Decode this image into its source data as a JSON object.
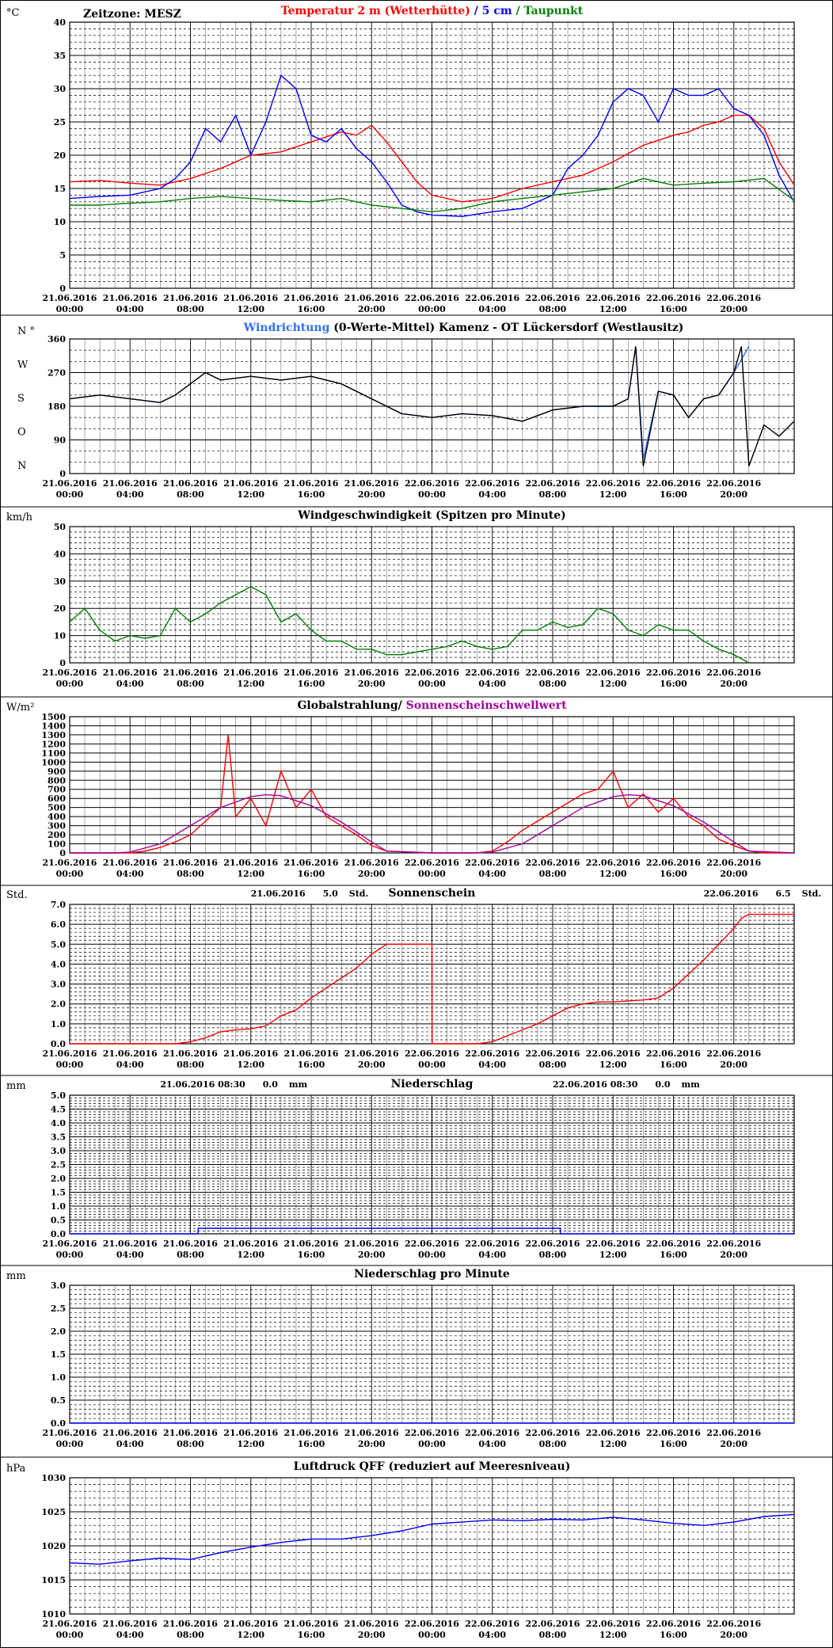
{
  "page": {
    "timezone": "Zeitzone: MESZ",
    "x_ticks": [
      "21.06.2016 00:00",
      "21.06.2016 04:00",
      "21.06.2016 08:00",
      "21.06.2016 12:00",
      "21.06.2016 16:00",
      "21.06.2016 20:00",
      "22.06.2016 00:00",
      "22.06.2016 04:00",
      "22.06.2016 08:00",
      "22.06.2016 12:00",
      "22.06.2016 16:00",
      "22.06.2016 20:00"
    ],
    "colors": {
      "red": "#ff0000",
      "blue": "#0000ff",
      "lightblue": "#3070ff",
      "green": "#008000",
      "purple": "#a000a0",
      "black": "#000000"
    }
  },
  "chart_data": [
    {
      "id": "temperature",
      "type": "line",
      "unit": "°C",
      "title_parts": [
        {
          "text": "Temperatur 2 m (Wetterhütte)",
          "color": "#ff0000"
        },
        {
          "text": "  /  ",
          "color": "#0000ff"
        },
        {
          "text": "5 cm",
          "color": "#0000ff"
        },
        {
          "text": " / ",
          "color": "#008000"
        },
        {
          "text": "Taupunkt",
          "color": "#008000"
        }
      ],
      "ylim": [
        0,
        40
      ],
      "yticks": [
        "0",
        "5",
        "10",
        "15",
        "20",
        "25",
        "30",
        "35",
        "40"
      ],
      "grid": true,
      "series": [
        {
          "name": "Temperatur 2 m (Wetterhütte)",
          "color": "#ff0000",
          "x": [
            0,
            2,
            4,
            6,
            8,
            10,
            12,
            14,
            16,
            18,
            19,
            20,
            21,
            22,
            23,
            24,
            26,
            28,
            30,
            32,
            34,
            36,
            38,
            40,
            41,
            42,
            43,
            44,
            45,
            46,
            47,
            48
          ],
          "y": [
            16,
            16.2,
            15.8,
            15.5,
            16.5,
            18,
            20,
            20.5,
            22,
            23.5,
            23,
            24.5,
            22,
            19,
            16,
            14,
            13,
            13.5,
            15,
            16,
            17,
            19,
            21.5,
            23,
            23.5,
            24.5,
            25,
            26,
            26,
            24,
            19,
            15.5
          ]
        },
        {
          "name": "5 cm",
          "color": "#0000ff",
          "x": [
            0,
            2,
            4,
            6,
            7,
            8,
            9,
            10,
            11,
            12,
            13,
            14,
            15,
            16,
            17,
            18,
            19,
            20,
            21,
            22,
            23,
            24,
            26,
            28,
            30,
            32,
            33,
            34,
            35,
            36,
            37,
            38,
            39,
            40,
            41,
            42,
            43,
            44,
            45,
            46,
            47,
            48
          ],
          "y": [
            13.5,
            13.8,
            14,
            15,
            16.5,
            19,
            24,
            22,
            26,
            20,
            25,
            32,
            30,
            23,
            22,
            24,
            21,
            19,
            16,
            12.5,
            11.5,
            11,
            10.8,
            11.5,
            12,
            14,
            18,
            20,
            23,
            28,
            30,
            29,
            25,
            30,
            29,
            29,
            30,
            27,
            26,
            23,
            17,
            13
          ]
        },
        {
          "name": "Taupunkt",
          "color": "#008000",
          "x": [
            0,
            2,
            4,
            6,
            8,
            10,
            12,
            14,
            16,
            18,
            20,
            22,
            24,
            26,
            28,
            30,
            32,
            34,
            36,
            38,
            40,
            42,
            44,
            46,
            48
          ],
          "y": [
            12.5,
            12.5,
            12.8,
            13,
            13.5,
            13.8,
            13.5,
            13.2,
            13,
            13.5,
            12.5,
            12,
            11.5,
            12,
            13,
            13.5,
            14,
            14.5,
            15,
            16.5,
            15.5,
            15.8,
            16,
            16.5,
            13.2
          ]
        }
      ]
    },
    {
      "id": "wind-direction",
      "type": "line",
      "title_parts": [
        {
          "text": "Windrichtung",
          "color": "#3070ff"
        },
        {
          "text": " (0-Werte-Mittel)",
          "color": "#000000"
        },
        {
          "text": "        Kamenz - OT Lückersdorf (Westlausitz)",
          "color": "#000000"
        }
      ],
      "ylim": [
        0,
        360
      ],
      "yticks": [
        "0",
        "90",
        "180",
        "270",
        "360"
      ],
      "ylabels_dir": [
        "N",
        "O",
        "S",
        "W",
        "N °"
      ],
      "grid": true,
      "series": [
        {
          "name": "Windrichtung",
          "color": "#3070ff",
          "x": [
            0,
            2,
            4,
            6,
            7,
            8,
            9,
            10,
            12,
            14,
            16,
            18,
            20,
            22,
            24,
            26,
            28,
            30,
            32,
            34,
            36,
            37,
            37.5,
            38,
            39,
            40,
            41,
            42,
            43,
            44,
            45
          ],
          "y": [
            200,
            210,
            200,
            190,
            210,
            240,
            270,
            250,
            260,
            250,
            260,
            240,
            200,
            160,
            150,
            160,
            155,
            140,
            170,
            180,
            180,
            200,
            340,
            40,
            220,
            210,
            150,
            200,
            210,
            270,
            340
          ]
        },
        {
          "name": "0-Werte-Mittel",
          "color": "#000000",
          "x": [
            0,
            2,
            4,
            6,
            7,
            8,
            9,
            10,
            12,
            14,
            16,
            18,
            20,
            22,
            24,
            26,
            28,
            30,
            32,
            34,
            36,
            37,
            37.5,
            38,
            39,
            40,
            41,
            42,
            43,
            44,
            44.5,
            45,
            46,
            47,
            48
          ],
          "y": [
            200,
            210,
            200,
            190,
            210,
            240,
            270,
            250,
            260,
            250,
            260,
            240,
            200,
            160,
            150,
            160,
            155,
            140,
            170,
            180,
            180,
            200,
            340,
            20,
            220,
            210,
            150,
            200,
            210,
            270,
            340,
            20,
            130,
            100,
            140
          ]
        }
      ]
    },
    {
      "id": "wind-speed",
      "type": "line",
      "unit": "km/h",
      "title_parts": [
        {
          "text": "Windgeschwindigkeit (Spitzen pro Minute)",
          "color": "#000000"
        }
      ],
      "ylim": [
        0,
        50
      ],
      "yticks": [
        "0",
        "10",
        "20",
        "30",
        "40",
        "50"
      ],
      "grid": true,
      "series": [
        {
          "name": "Windgeschwindigkeit",
          "color": "#008000",
          "x": [
            0,
            1,
            2,
            3,
            4,
            5,
            6,
            7,
            8,
            9,
            10,
            11,
            12,
            13,
            14,
            15,
            16,
            17,
            18,
            19,
            20,
            21,
            22,
            23,
            24,
            25,
            26,
            27,
            28,
            29,
            30,
            31,
            32,
            33,
            34,
            35,
            36,
            37,
            38,
            39,
            40,
            41,
            42,
            43,
            44,
            45
          ],
          "y": [
            15,
            20,
            12,
            8,
            10,
            9,
            10,
            20,
            15,
            18,
            22,
            25,
            28,
            25,
            15,
            18,
            12,
            8,
            8,
            5,
            5,
            3,
            3,
            4,
            5,
            6,
            8,
            6,
            5,
            6,
            12,
            12,
            15,
            13,
            14,
            20,
            18,
            12,
            10,
            14,
            12,
            12,
            8,
            5,
            3,
            0
          ]
        }
      ]
    },
    {
      "id": "radiation",
      "type": "line",
      "unit": "W/m²",
      "title_parts": [
        {
          "text": "Globalstrahlung/ ",
          "color": "#000000"
        },
        {
          "text": "Sonnenscheinschwellwert",
          "color": "#a000a0"
        }
      ],
      "ylim": [
        0,
        1500
      ],
      "yticks": [
        "0",
        "100",
        "200",
        "300",
        "400",
        "500",
        "600",
        "700",
        "800",
        "900",
        "1000",
        "1100",
        "1200",
        "1300",
        "1400",
        "1500"
      ],
      "grid": true,
      "series": [
        {
          "name": "Globalstrahlung",
          "color": "#ff0000",
          "x": [
            0,
            4,
            5,
            6,
            7,
            8,
            9,
            10,
            10.5,
            11,
            12,
            13,
            14,
            15,
            16,
            17,
            18,
            19,
            20,
            21,
            24,
            27,
            28,
            29,
            30,
            31,
            32,
            33,
            34,
            35,
            36,
            37,
            38,
            39,
            40,
            41,
            42,
            43,
            44,
            45,
            46,
            48
          ],
          "y": [
            0,
            0,
            20,
            60,
            120,
            200,
            350,
            500,
            1300,
            400,
            600,
            300,
            900,
            500,
            700,
            400,
            300,
            200,
            80,
            20,
            0,
            0,
            20,
            120,
            250,
            350,
            450,
            550,
            650,
            700,
            900,
            500,
            650,
            450,
            600,
            400,
            300,
            150,
            80,
            20,
            0,
            0
          ]
        },
        {
          "name": "Sonnenscheinschwellwert",
          "color": "#a000a0",
          "x": [
            0,
            3,
            4,
            6,
            8,
            10,
            12,
            13,
            14,
            16,
            18,
            20,
            21,
            24,
            27,
            28,
            30,
            32,
            34,
            36,
            37,
            38,
            40,
            42,
            44,
            45,
            48
          ],
          "y": [
            0,
            0,
            10,
            100,
            300,
            500,
            620,
            640,
            630,
            520,
            340,
            120,
            20,
            0,
            0,
            10,
            100,
            300,
            500,
            620,
            640,
            630,
            520,
            340,
            120,
            20,
            0
          ]
        }
      ]
    },
    {
      "id": "sunshine",
      "type": "line",
      "unit": "Std.",
      "title_parts": [
        {
          "text": "Sonnenschein",
          "color": "#000000"
        }
      ],
      "annotations": [
        {
          "date": "21.06.2016",
          "value": "5.0",
          "unit": "Std."
        },
        {
          "date": "22.06.2016",
          "value": "6.5",
          "unit": "Std."
        }
      ],
      "ylim": [
        0,
        7
      ],
      "yticks": [
        "0.0",
        "1.0",
        "2.0",
        "3.0",
        "4.0",
        "5.0",
        "6.0",
        "7.0"
      ],
      "grid": true,
      "series": [
        {
          "name": "Sonnenschein",
          "color": "#ff0000",
          "x": [
            0,
            7,
            8,
            9,
            10,
            11,
            12,
            13,
            14,
            15,
            16,
            17,
            18,
            19,
            20,
            21,
            22,
            23,
            24,
            24.01,
            27,
            28,
            29,
            30,
            31,
            32,
            33,
            34,
            35,
            36,
            37,
            38,
            39,
            40,
            41,
            42,
            43,
            44,
            44.5,
            45,
            46,
            48
          ],
          "y": [
            0,
            0,
            0.1,
            0.3,
            0.6,
            0.7,
            0.75,
            0.9,
            1.4,
            1.7,
            2.3,
            2.8,
            3.3,
            3.8,
            4.5,
            5.0,
            5.0,
            5.0,
            5.0,
            0,
            0,
            0.1,
            0.4,
            0.7,
            1.0,
            1.4,
            1.8,
            2.0,
            2.1,
            2.1,
            2.15,
            2.2,
            2.3,
            2.8,
            3.5,
            4.2,
            5.0,
            5.8,
            6.3,
            6.5,
            6.5,
            6.5
          ]
        }
      ]
    },
    {
      "id": "precipitation",
      "type": "line",
      "unit": "mm",
      "title_parts": [
        {
          "text": "Niederschlag",
          "color": "#000000"
        }
      ],
      "annotations": [
        {
          "date": "21.06.2016 08:30",
          "value": "0.0",
          "unit": "mm"
        },
        {
          "date": "22.06.2016 08:30",
          "value": "0.0",
          "unit": "mm"
        }
      ],
      "ylim": [
        0,
        5
      ],
      "yticks": [
        "0.0",
        "0.5",
        "1.0",
        "1.5",
        "2.0",
        "2.5",
        "3.0",
        "3.5",
        "4.0",
        "4.5",
        "5.0"
      ],
      "grid": true,
      "series": [
        {
          "name": "Niederschlag",
          "color": "#0000ff",
          "x": [
            0,
            8.5,
            8.51,
            32.5,
            32.51,
            48
          ],
          "y": [
            0,
            0,
            0.2,
            0.2,
            0,
            0
          ]
        }
      ]
    },
    {
      "id": "precip-minute",
      "type": "line",
      "unit": "mm",
      "title_parts": [
        {
          "text": "Niederschlag pro Minute",
          "color": "#000000"
        }
      ],
      "ylim": [
        0,
        3
      ],
      "yticks": [
        "0.0",
        "0.5",
        "1.0",
        "1.5",
        "2.0",
        "2.5",
        "3.0"
      ],
      "grid": true,
      "series": [
        {
          "name": "Niederschlag pro Minute",
          "color": "#0000ff",
          "x": [
            0,
            48
          ],
          "y": [
            0,
            0
          ]
        }
      ]
    },
    {
      "id": "pressure",
      "type": "line",
      "unit": "hPa",
      "title_parts": [
        {
          "text": "Luftdruck QFF (reduziert auf Meeresniveau)",
          "color": "#000000"
        }
      ],
      "ylim": [
        1010,
        1030
      ],
      "yticks": [
        "1010",
        "1015",
        "1020",
        "1025",
        "1030"
      ],
      "grid": true,
      "series": [
        {
          "name": "Luftdruck QFF",
          "color": "#0000ff",
          "x": [
            0,
            2,
            4,
            6,
            8,
            10,
            12,
            14,
            16,
            18,
            20,
            22,
            24,
            26,
            28,
            30,
            32,
            34,
            36,
            38,
            40,
            42,
            44,
            46,
            48
          ],
          "y": [
            1017.5,
            1017.3,
            1017.8,
            1018.2,
            1018.0,
            1019.0,
            1019.8,
            1020.5,
            1021.0,
            1021.0,
            1021.5,
            1022.2,
            1023.2,
            1023.5,
            1023.8,
            1023.7,
            1023.9,
            1023.8,
            1024.2,
            1023.8,
            1023.3,
            1023.0,
            1023.5,
            1024.3,
            1024.6
          ]
        }
      ]
    }
  ]
}
